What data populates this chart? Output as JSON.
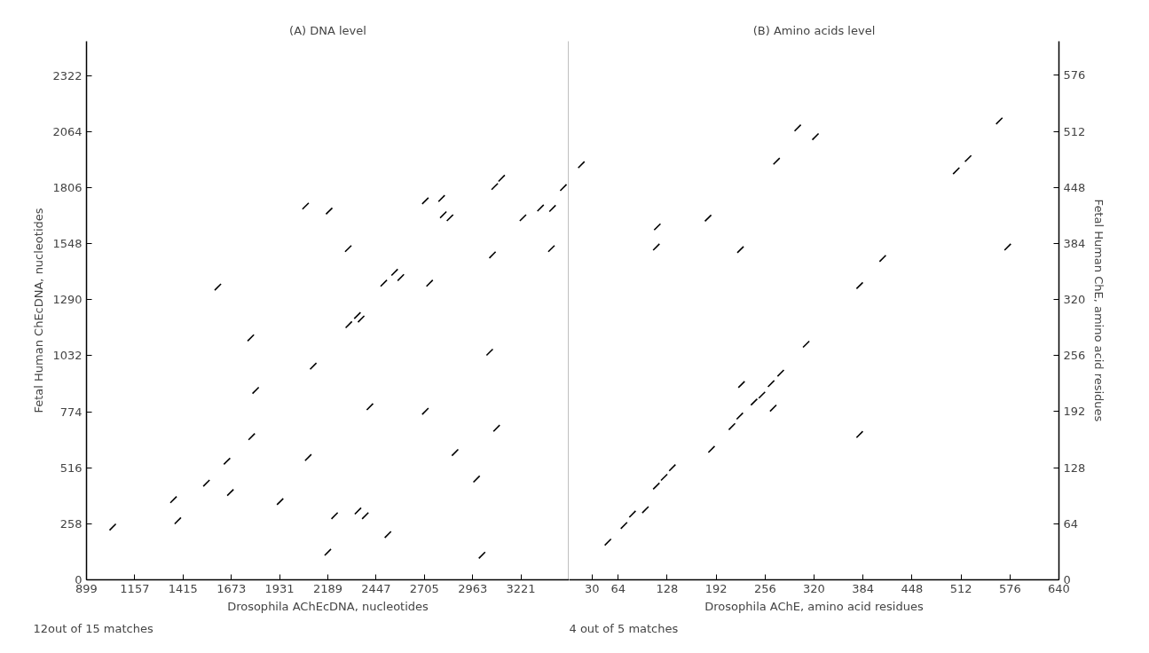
{
  "chart_data": [
    {
      "type": "scatter",
      "title": "(A) DNA level",
      "xlabel": "Drosophila AChEcDNA, nucleotides",
      "ylabel": "Fetal Human ChEcDNA, nucleotides",
      "annotations": [
        "12out of 15 matches"
      ],
      "xlim": [
        899,
        3479
      ],
      "xticks": [
        899,
        1157,
        1415,
        1673,
        1931,
        2189,
        2447,
        2705,
        2963,
        3221
      ],
      "ylim": [
        0,
        2480
      ],
      "yticks": [
        0,
        258,
        516,
        774,
        1032,
        1290,
        1548,
        1806,
        2064,
        2322
      ],
      "grid": false,
      "series": [
        {
          "color": "#000000",
          "x": [
            1039,
            1364,
            1387,
            1540,
            1650,
            1668,
            1601,
            1777,
            1803,
            1782,
            1934,
            2070,
            2111,
            2084,
            2196,
            2298,
            2301,
            2347,
            2367,
            2225,
            2189,
            2350,
            2389,
            2414,
            2510,
            2488,
            2546,
            2579,
            2733,
            2710,
            2710,
            2797,
            2806,
            2842,
            2869,
            2984,
            3013,
            3054,
            3069,
            3091,
            3081,
            3118,
            3232,
            3326,
            3390,
            3384,
            3448
          ],
          "values": [
            243,
            369,
            272,
            445,
            546,
            402,
            1348,
            1114,
            872,
            659,
            360,
            1721,
            984,
            563,
            1698,
            1525,
            1175,
            1217,
            1201,
            295,
            127,
            317,
            295,
            797,
            208,
            1366,
            1416,
            1392,
            1366,
            776,
            1745,
            1756,
            1681,
            1667,
            586,
            464,
            113,
            1048,
            1496,
            698,
            1811,
            1849,
            1667,
            1712,
            1710,
            1525,
            1806
          ]
        }
      ]
    },
    {
      "type": "scatter",
      "title": "(B) Amino acids level",
      "xlabel": "Drosophila AChE, amino acid residues",
      "y2label": "Fetal Human ChE, amino acid residues",
      "annotations": [
        "4 out of 5 matches"
      ],
      "xlim": [
        0,
        640
      ],
      "xticks": [
        30,
        64,
        128,
        192,
        256,
        320,
        384,
        448,
        512,
        576,
        640
      ],
      "y2lim": [
        0,
        615
      ],
      "y2ticks": [
        0,
        64,
        128,
        192,
        256,
        320,
        384,
        448,
        512,
        576
      ],
      "grid": false,
      "series": [
        {
          "color": "#000000",
          "axis": "y2",
          "x": [
            15.9,
            50.6,
            71.6,
            82.7,
            99.6,
            113.9,
            124.1,
            134.8,
            186,
            212.7,
            223,
            225.2,
            241.6,
            251.9,
            263.9,
            276.4,
            266.6,
            309.7,
            115.2,
            113.9,
            181.5,
            223.8,
            271,
            298.6,
            321.8,
            379.6,
            409.7,
            379.6,
            505.8,
            521.3,
            562,
            573
          ],
          "values": [
            474,
            43,
            62,
            75,
            80,
            107,
            117,
            128,
            149,
            175,
            187,
            223,
            203,
            211,
            224,
            236,
            196,
            269,
            403,
            380,
            413,
            377,
            478,
            516,
            506,
            336,
            367,
            166,
            467,
            481,
            524,
            380
          ]
        }
      ]
    }
  ]
}
